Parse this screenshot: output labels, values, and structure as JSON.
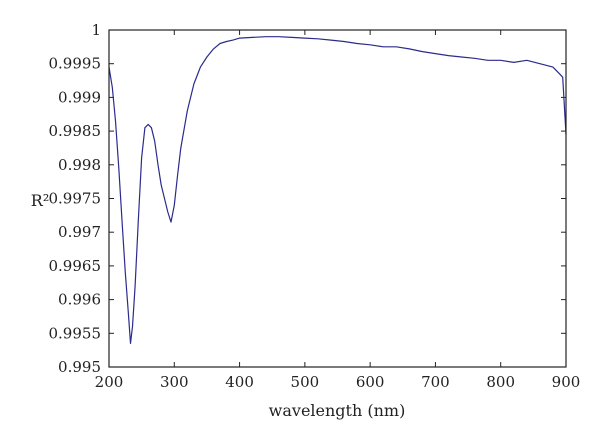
{
  "chart_data": {
    "type": "line",
    "title": "",
    "xlabel": "wavelength (nm)",
    "ylabel": "R²",
    "xlim": [
      200,
      900
    ],
    "ylim": [
      0.995,
      1.0
    ],
    "xticks": [
      200,
      300,
      400,
      500,
      600,
      700,
      800,
      900
    ],
    "xtick_labels": [
      "200",
      "300",
      "400",
      "500",
      "600",
      "700",
      "800",
      "900"
    ],
    "yticks": [
      0.995,
      0.9955,
      0.996,
      0.9965,
      0.997,
      0.9975,
      0.998,
      0.9985,
      0.999,
      0.9995,
      1.0
    ],
    "ytick_labels": [
      "0.995",
      "0.9955",
      "0.996",
      "0.9965",
      "0.997",
      "0.9975",
      "0.998",
      "0.9985",
      "0.999",
      "0.9995",
      "1"
    ],
    "grid": false,
    "series": [
      {
        "color": "#2b2b8c",
        "x": [
          200,
          205,
          210,
          215,
          220,
          225,
          230,
          233,
          236,
          240,
          245,
          250,
          255,
          260,
          265,
          270,
          275,
          280,
          285,
          290,
          295,
          300,
          305,
          310,
          320,
          330,
          340,
          350,
          360,
          370,
          380,
          390,
          400,
          420,
          440,
          460,
          480,
          500,
          520,
          540,
          560,
          580,
          600,
          620,
          640,
          660,
          680,
          700,
          720,
          740,
          760,
          780,
          800,
          820,
          840,
          860,
          880,
          890,
          895,
          900
        ],
        "y": [
          0.99945,
          0.99915,
          0.99865,
          0.99795,
          0.99715,
          0.9964,
          0.99575,
          0.99535,
          0.9956,
          0.9962,
          0.9972,
          0.9981,
          0.99855,
          0.9986,
          0.99855,
          0.99835,
          0.998,
          0.9977,
          0.9975,
          0.9973,
          0.99715,
          0.9974,
          0.99785,
          0.99825,
          0.9988,
          0.9992,
          0.99945,
          0.9996,
          0.99972,
          0.9998,
          0.99983,
          0.99985,
          0.99988,
          0.99989,
          0.9999,
          0.9999,
          0.99989,
          0.99988,
          0.99987,
          0.99985,
          0.99983,
          0.9998,
          0.99978,
          0.99975,
          0.99975,
          0.99972,
          0.99968,
          0.99965,
          0.99962,
          0.9996,
          0.99958,
          0.99955,
          0.99955,
          0.99952,
          0.99955,
          0.9995,
          0.99945,
          0.99935,
          0.9993,
          0.99845
        ]
      }
    ]
  }
}
